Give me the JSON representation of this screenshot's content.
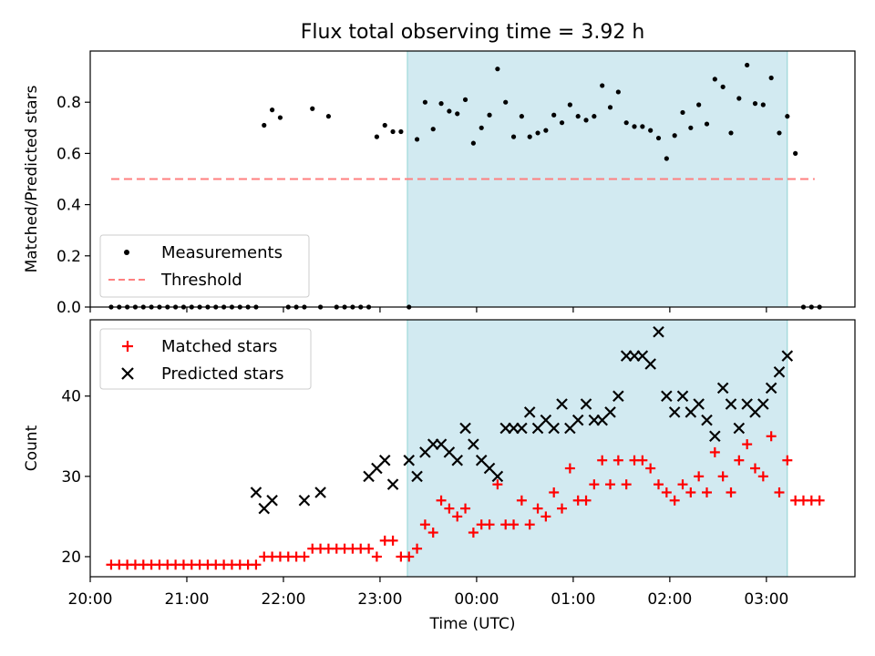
{
  "figure": {
    "title": "Flux total observing time = 3.92 h"
  },
  "chart_data": [
    {
      "type": "scatter",
      "panel": "top",
      "ylabel": "Matched/Predicted stars",
      "xlabel": "",
      "xlim": [
        "20:00",
        "03:55"
      ],
      "ylim": [
        0,
        1.0
      ],
      "yticks": [
        0.0,
        0.2,
        0.4,
        0.6,
        0.8
      ],
      "yticklabels": [
        "0.0",
        "0.2",
        "0.4",
        "0.6",
        "0.8"
      ],
      "shaded_interval": [
        "23:17",
        "03:13"
      ],
      "shade_color": "#add8e6",
      "legend": {
        "placement": "lower-left",
        "entries": [
          "Measurements",
          "Threshold"
        ]
      },
      "threshold": {
        "name": "Threshold",
        "value": 0.5,
        "x_range": [
          "20:13",
          "03:30"
        ],
        "style": "dashed",
        "color": "#ff7f7f"
      },
      "series": [
        {
          "name": "Measurements",
          "color": "#000000",
          "x": [
            "20:13",
            "20:18",
            "20:23",
            "20:28",
            "20:33",
            "20:38",
            "20:43",
            "20:48",
            "20:53",
            "20:58",
            "21:03",
            "21:08",
            "21:13",
            "21:18",
            "21:23",
            "21:28",
            "21:33",
            "21:38",
            "21:43",
            "21:48",
            "21:53",
            "21:58",
            "22:03",
            "22:08",
            "22:13",
            "22:18",
            "22:23",
            "22:28",
            "22:33",
            "22:38",
            "22:43",
            "22:48",
            "22:53",
            "22:58",
            "23:03",
            "23:08",
            "23:13",
            "23:18",
            "23:23",
            "23:28",
            "23:33",
            "23:38",
            "23:43",
            "23:48",
            "23:53",
            "23:58",
            "00:03",
            "00:08",
            "00:13",
            "00:18",
            "00:23",
            "00:28",
            "00:33",
            "00:38",
            "00:43",
            "00:48",
            "00:53",
            "00:58",
            "01:03",
            "01:08",
            "01:13",
            "01:18",
            "01:23",
            "01:28",
            "01:33",
            "01:38",
            "01:43",
            "01:48",
            "01:53",
            "01:58",
            "02:03",
            "02:08",
            "02:13",
            "02:18",
            "02:23",
            "02:28",
            "02:33",
            "02:38",
            "02:43",
            "02:48",
            "02:53",
            "02:58",
            "03:03",
            "03:08",
            "03:13",
            "03:18",
            "03:23",
            "03:28",
            "03:33"
          ],
          "y": [
            0,
            0,
            0,
            0,
            0,
            0,
            0,
            0,
            0,
            0,
            0,
            0,
            0,
            0,
            0,
            0,
            0,
            0,
            0,
            0.71,
            0.77,
            0.74,
            0,
            0,
            0,
            0.775,
            0,
            0.745,
            0,
            0,
            0,
            0,
            0,
            0.665,
            0.71,
            0.685,
            0.685,
            0,
            0.655,
            0.8,
            0.695,
            0.795,
            0.765,
            0.755,
            0.81,
            0.64,
            0.7,
            0.75,
            0.93,
            0.8,
            0.665,
            0.745,
            0.665,
            0.68,
            0.69,
            0.75,
            0.72,
            0.79,
            0.745,
            0.73,
            0.745,
            0.865,
            0.78,
            0.84,
            0.72,
            0.705,
            0.705,
            0.69,
            0.66,
            0.58,
            0.67,
            0.76,
            0.7,
            0.79,
            0.715,
            0.89,
            0.86,
            0.68,
            0.815,
            0.945,
            0.795,
            0.79,
            0.895,
            0.68,
            0.745,
            0.6,
            0,
            0,
            0
          ]
        }
      ]
    },
    {
      "type": "scatter",
      "panel": "bottom",
      "ylabel": "Count",
      "xlabel": "Time (UTC)",
      "xlim": [
        "20:00",
        "03:55"
      ],
      "ylim": [
        17.5,
        49.5
      ],
      "yticks": [
        20,
        30,
        40
      ],
      "yticklabels": [
        "20",
        "30",
        "40"
      ],
      "xticklabels": [
        "20:00",
        "21:00",
        "22:00",
        "23:00",
        "00:00",
        "01:00",
        "02:00",
        "03:00"
      ],
      "shaded_interval": [
        "23:17",
        "03:13"
      ],
      "shade_color": "#add8e6",
      "legend": {
        "placement": "top-left",
        "entries": [
          "Matched stars",
          "Predicted stars"
        ]
      },
      "series": [
        {
          "name": "Matched stars",
          "marker": "plus",
          "color": "#ff0000",
          "x": [
            "20:13",
            "20:18",
            "20:23",
            "20:28",
            "20:33",
            "20:38",
            "20:43",
            "20:48",
            "20:53",
            "20:58",
            "21:03",
            "21:08",
            "21:13",
            "21:18",
            "21:23",
            "21:28",
            "21:33",
            "21:38",
            "21:43",
            "21:48",
            "21:53",
            "21:58",
            "22:03",
            "22:08",
            "22:13",
            "22:18",
            "22:23",
            "22:28",
            "22:33",
            "22:38",
            "22:43",
            "22:48",
            "22:53",
            "22:58",
            "23:03",
            "23:08",
            "23:13",
            "23:18",
            "23:23",
            "23:28",
            "23:33",
            "23:38",
            "23:43",
            "23:48",
            "23:53",
            "23:58",
            "00:03",
            "00:08",
            "00:13",
            "00:18",
            "00:23",
            "00:28",
            "00:33",
            "00:38",
            "00:43",
            "00:48",
            "00:53",
            "00:58",
            "01:03",
            "01:08",
            "01:13",
            "01:18",
            "01:23",
            "01:28",
            "01:33",
            "01:38",
            "01:43",
            "01:48",
            "01:53",
            "01:58",
            "02:03",
            "02:08",
            "02:13",
            "02:18",
            "02:23",
            "02:28",
            "02:33",
            "02:38",
            "02:43",
            "02:48",
            "02:53",
            "02:58",
            "03:03",
            "03:08",
            "03:13",
            "03:18",
            "03:23",
            "03:28",
            "03:33"
          ],
          "y": [
            19,
            19,
            19,
            19,
            19,
            19,
            19,
            19,
            19,
            19,
            19,
            19,
            19,
            19,
            19,
            19,
            19,
            19,
            19,
            20,
            20,
            20,
            20,
            20,
            20,
            21,
            21,
            21,
            21,
            21,
            21,
            21,
            21,
            20,
            22,
            22,
            20,
            20,
            21,
            24,
            23,
            27,
            26,
            25,
            26,
            23,
            24,
            24,
            29,
            24,
            24,
            27,
            24,
            26,
            25,
            28,
            26,
            31,
            27,
            27,
            29,
            32,
            29,
            32,
            29,
            32,
            32,
            31,
            29,
            28,
            27,
            29,
            28,
            30,
            28,
            33,
            30,
            28,
            32,
            34,
            31,
            30,
            35,
            28,
            32,
            27,
            27,
            27,
            27
          ]
        },
        {
          "name": "Predicted stars",
          "marker": "cross",
          "color": "#000000",
          "x": [
            "21:43",
            "21:48",
            "21:53",
            "22:13",
            "22:23",
            "22:53",
            "22:58",
            "23:03",
            "23:08",
            "23:18",
            "23:23",
            "23:28",
            "23:33",
            "23:38",
            "23:43",
            "23:48",
            "23:53",
            "23:58",
            "00:03",
            "00:08",
            "00:13",
            "00:18",
            "00:23",
            "00:28",
            "00:33",
            "00:38",
            "00:43",
            "00:48",
            "00:53",
            "00:58",
            "01:03",
            "01:08",
            "01:13",
            "01:18",
            "01:23",
            "01:28",
            "01:33",
            "01:38",
            "01:43",
            "01:48",
            "01:53",
            "01:58",
            "02:03",
            "02:08",
            "02:13",
            "02:18",
            "02:23",
            "02:28",
            "02:33",
            "02:38",
            "02:43",
            "02:48",
            "02:53",
            "02:58",
            "03:03",
            "03:08",
            "03:13"
          ],
          "y": [
            28,
            26,
            27,
            27,
            28,
            30,
            31,
            32,
            29,
            32,
            30,
            33,
            34,
            34,
            33,
            32,
            36,
            34,
            32,
            31,
            30,
            36,
            36,
            36,
            38,
            36,
            37,
            36,
            39,
            36,
            37,
            39,
            37,
            37,
            38,
            40,
            45,
            45,
            45,
            44,
            48,
            40,
            38,
            40,
            38,
            39,
            37,
            35,
            41,
            39,
            36,
            39,
            38,
            39,
            41,
            43,
            45
          ]
        }
      ]
    }
  ]
}
